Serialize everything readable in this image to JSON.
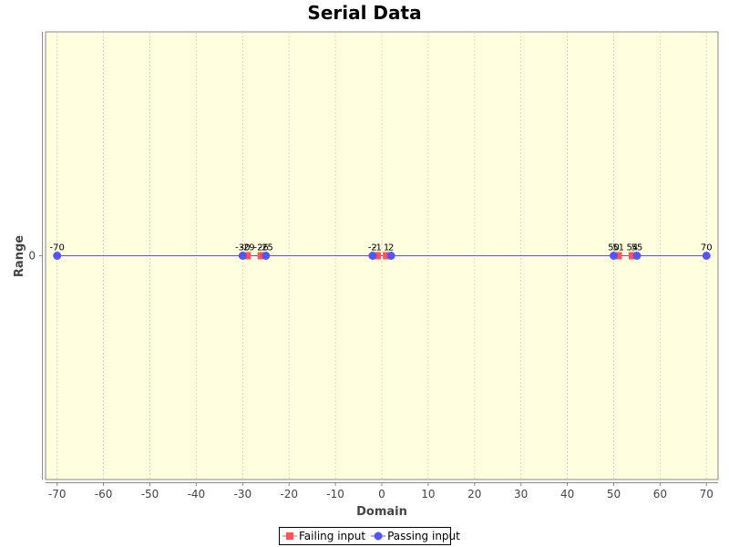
{
  "chart_data": {
    "type": "scatter",
    "title": "Serial Data",
    "xlabel": "Domain",
    "ylabel": "Range",
    "xlim": [
      -72.5,
      72.5
    ],
    "x_ticks": [
      -70,
      -60,
      -50,
      -40,
      -30,
      -20,
      -10,
      0,
      10,
      20,
      30,
      40,
      50,
      60,
      70
    ],
    "y_ticks": [
      0
    ],
    "grid": "vertical dashed",
    "legend_position": "bottom-center",
    "colors": {
      "plot_background": "#ffffe0",
      "grid": "#cfcfcf",
      "failing": "#ff5555",
      "passing": "#5555ff",
      "line": "#5555ff"
    },
    "series": [
      {
        "name": "Failing input",
        "marker": "square",
        "color": "#ff5555",
        "x": [
          -29,
          -26,
          -1,
          1,
          51,
          54
        ],
        "y": [
          0,
          0,
          0,
          0,
          0,
          0
        ],
        "labels": [
          "-29",
          "-26",
          "-1",
          "1",
          "51",
          "54"
        ]
      },
      {
        "name": "Passing input",
        "marker": "circle",
        "color": "#5555ff",
        "x": [
          -70,
          -30,
          -25,
          -2,
          2,
          50,
          55,
          70
        ],
        "y": [
          0,
          0,
          0,
          0,
          0,
          0,
          0,
          0
        ],
        "labels": [
          "-70",
          "-30",
          "-25",
          "-2",
          "2",
          "50",
          "55",
          "70"
        ]
      }
    ]
  }
}
